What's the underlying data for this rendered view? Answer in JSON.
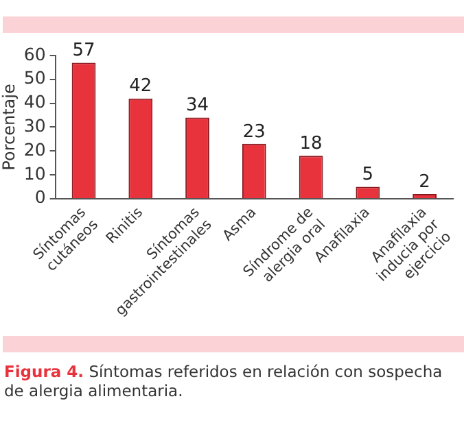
{
  "chart_data": {
    "type": "bar",
    "ylabel": "Porcentaje",
    "categories": [
      "Síntomas cutáneos",
      "Rinitis",
      "Síntomas gastrointestinales",
      "Asma",
      "Síndrome de alergia oral",
      "Anafilaxia",
      "Anafilaxia inducia por ejercicio"
    ],
    "values": [
      57,
      42,
      34,
      23,
      18,
      5,
      2
    ],
    "color": "#e8323c",
    "ylim": [
      0,
      60
    ],
    "yticks": [
      0,
      10,
      20,
      30,
      40,
      50,
      60
    ],
    "grid": false,
    "data_labels": true,
    "annotations": [
      "Figura 4.",
      "Síntomas referidos en relación con sospecha de alergia alimentaria."
    ]
  }
}
